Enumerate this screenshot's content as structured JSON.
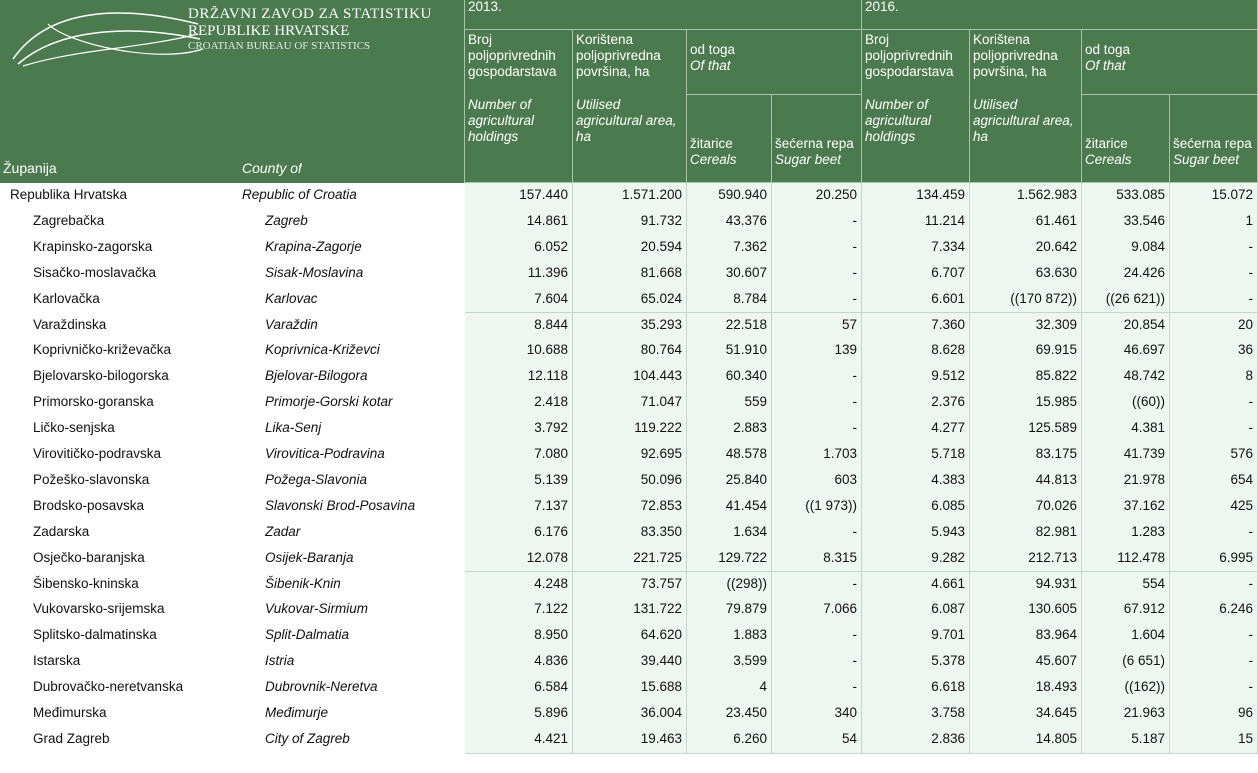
{
  "header": {
    "logo": [
      "DRŽAVNI ZAVOD ZA STATISTIKU",
      "REPUBLIKE HRVATSKE",
      "CROATIAN BUREAU OF STATISTICS"
    ],
    "col1": "Županija",
    "col2": "County of",
    "years": [
      {
        "year": "2013.",
        "holdings_hr": "Broj poljoprivrednih gospodarstava",
        "holdings_en": "Number of agricultural holdings",
        "area_hr": "Korištena poljoprivredna površina, ha",
        "area_en": "Utilised agricultural area, ha",
        "of_that_hr": "od toga",
        "of_that_en": "Of that",
        "cereals_hr": "žitarice",
        "cereals_en": "Cereals",
        "beet_hr": "šećerna repa",
        "beet_en": "Sugar beet"
      },
      {
        "year": "2016.",
        "holdings_hr": "Broj poljoprivrednih gospodarstava",
        "holdings_en": "Number of agricultural holdings",
        "area_hr": "Korištena poljoprivredna površina, ha",
        "area_en": "Utilised agricultural area, ha",
        "of_that_hr": "od toga",
        "of_that_en": "Of that",
        "cereals_hr": "žitarice",
        "cereals_en": "Cereals",
        "beet_hr": "šećerna repa",
        "beet_en": "Sugar beet"
      }
    ]
  },
  "table": {
    "rows": [
      [
        "Republika Hrvatska",
        "Republic of Croatia",
        "157.440",
        "1.571.200",
        "590.940",
        "20.250",
        "134.459",
        "1.562.983",
        "533.085",
        "15.072"
      ],
      [
        "Zagrebačka",
        "Zagreb",
        "14.861",
        "91.732",
        "43.376",
        "-",
        "11.214",
        "61.461",
        "33.546",
        "1"
      ],
      [
        "Krapinsko-zagorska",
        "Krapina-Zagorje",
        "6.052",
        "20.594",
        "7.362",
        "-",
        "7.334",
        "20.642",
        "9.084",
        "-"
      ],
      [
        "Sisačko-moslavačka",
        "Sisak-Moslavina",
        "11.396",
        "81.668",
        "30.607",
        "-",
        "6.707",
        "63.630",
        "24.426",
        "-"
      ],
      [
        "Karlovačka",
        "Karlovac",
        "7.604",
        "65.024",
        "8.784",
        "-",
        "6.601",
        "((170 872))",
        "((26 621))",
        "-"
      ],
      [
        "Varaždinska",
        "Varaždin",
        "8.844",
        "35.293",
        "22.518",
        "57",
        "7.360",
        "32.309",
        "20.854",
        "20"
      ],
      [
        "Koprivničko-križevačka",
        "Koprivnica-Križevci",
        "10.688",
        "80.764",
        "51.910",
        "139",
        "8.628",
        "69.915",
        "46.697",
        "36"
      ],
      [
        "Bjelovarsko-bilogorska",
        "Bjelovar-Bilogora",
        "12.118",
        "104.443",
        "60.340",
        "-",
        "9.512",
        "85.822",
        "48.742",
        "8"
      ],
      [
        "Primorsko-goranska",
        "Primorje-Gorski kotar",
        "2.418",
        "71.047",
        "559",
        "-",
        "2.376",
        "15.985",
        "((60))",
        "-"
      ],
      [
        "Ličko-senjska",
        "Lika-Senj",
        "3.792",
        "119.222",
        "2.883",
        "-",
        "4.277",
        "125.589",
        "4.381",
        "-"
      ],
      [
        "Virovitičko-podravska",
        "Virovitica-Podravina",
        "7.080",
        "92.695",
        "48.578",
        "1.703",
        "5.718",
        "83.175",
        "41.739",
        "576"
      ],
      [
        "Požeško-slavonska",
        "Požega-Slavonia",
        "5.139",
        "50.096",
        "25.840",
        "603",
        "4.383",
        "44.813",
        "21.978",
        "654"
      ],
      [
        "Brodsko-posavska",
        "Slavonski Brod-Posavina",
        "7.137",
        "72.853",
        "41.454",
        "((1 973))",
        "6.085",
        "70.026",
        "37.162",
        "425"
      ],
      [
        "Zadarska",
        "Zadar",
        "6.176",
        "83.350",
        "1.634",
        "-",
        "5.943",
        "82.981",
        "1.283",
        "-"
      ],
      [
        "Osječko-baranjska",
        "Osijek-Baranja",
        "12.078",
        "221.725",
        "129.722",
        "8.315",
        "9.282",
        "212.713",
        "112.478",
        "6.995"
      ],
      [
        "Šibensko-kninska",
        "Šibenik-Knin",
        "4.248",
        "73.757",
        "((298))",
        "-",
        "4.661",
        "94.931",
        "554",
        "-"
      ],
      [
        "Vukovarsko-srijemska",
        "Vukovar-Sirmium",
        "7.122",
        "131.722",
        "79.879",
        "7.066",
        "6.087",
        "130.605",
        "67.912",
        "6.246"
      ],
      [
        "Splitsko-dalmatinska",
        "Split-Dalmatia",
        "8.950",
        "64.620",
        "1.883",
        "-",
        "9.701",
        "83.964",
        "1.604",
        "-"
      ],
      [
        "Istarska",
        "Istria",
        "4.836",
        "39.440",
        "3.599",
        "-",
        "5.378",
        "45.607",
        "(6 651)",
        "-"
      ],
      [
        "Dubrovačko-neretvanska",
        "Dubrovnik-Neretva",
        "6.584",
        "15.688",
        "4",
        "-",
        "6.618",
        "18.493",
        "((162))",
        "-"
      ],
      [
        "Međimurska",
        "Međimurje",
        "5.896",
        "36.004",
        "23.450",
        "340",
        "3.758",
        "34.645",
        "21.963",
        "96"
      ],
      [
        "Grad Zagreb",
        "City of Zagreb",
        "4.421",
        "19.463",
        "6.260",
        "54",
        "2.836",
        "14.805",
        "5.187",
        "15"
      ]
    ]
  }
}
